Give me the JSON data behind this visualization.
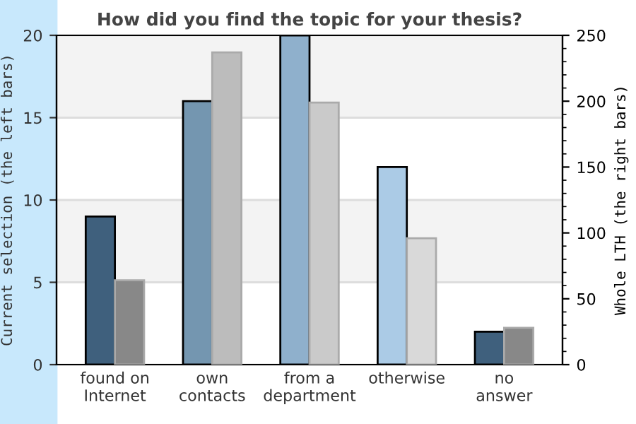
{
  "chart_data": {
    "type": "bar",
    "title": "How did you find the topic for your thesis?",
    "ylabel": "Current selection (the left bars)",
    "y2label": "Whole LTH (the right bars)",
    "categories": [
      "found on\nInternet",
      "own\ncontacts",
      "from a\ndepartment",
      "otherwise",
      "no\nanswer"
    ],
    "series": [
      {
        "colors": [
          "#3f607d",
          "#7496b0",
          "#8fb0cc",
          "#abcbe6",
          "#3f607d"
        ],
        "values": [
          9,
          16,
          20,
          12,
          2
        ]
      },
      {
        "axis": "y2",
        "colors": [
          "#888888",
          "#bcbcbc",
          "#cacaca",
          "#d9d9d9",
          "#888888"
        ],
        "values": [
          64,
          237,
          199,
          96,
          28
        ]
      }
    ],
    "ylim": [
      0,
      20
    ],
    "yticks": [
      0,
      5,
      10,
      15,
      20
    ],
    "y2lim": [
      0,
      250
    ],
    "y2ticks": [
      0,
      50,
      100,
      150,
      200,
      250
    ],
    "bands": [
      {
        "axis": "y",
        "from": 5,
        "to": 10,
        "color": "#f3f3f3"
      },
      {
        "axis": "y",
        "from": 15,
        "to": 20,
        "color": "#f3f3f3"
      }
    ],
    "grid": "y",
    "legend": false
  }
}
